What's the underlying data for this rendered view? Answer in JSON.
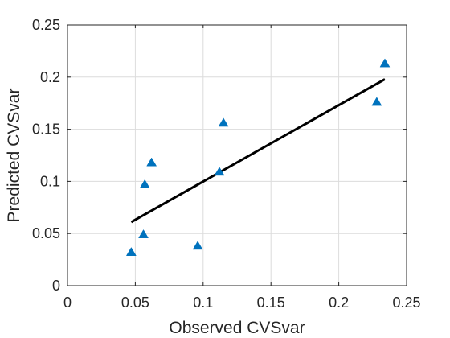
{
  "chart_data": {
    "type": "scatter",
    "title": "",
    "xlabel": "Observed CVSvar",
    "ylabel": "Predicted CVSvar",
    "xlim": [
      0,
      0.25
    ],
    "ylim": [
      0,
      0.25
    ],
    "xticks": [
      "0",
      "0.05",
      "0.1",
      "0.15",
      "0.2",
      "0.25"
    ],
    "yticks": [
      "0",
      "0.05",
      "0.1",
      "0.15",
      "0.2",
      "0.25"
    ],
    "grid": true,
    "legend": "none",
    "marker": "triangle",
    "colors": {
      "marker": "#0072BD",
      "fit_line": "#000000"
    },
    "series": [
      {
        "points": [
          {
            "x": 0.047,
            "y": 0.032
          },
          {
            "x": 0.056,
            "y": 0.049
          },
          {
            "x": 0.057,
            "y": 0.097
          },
          {
            "x": 0.062,
            "y": 0.118
          },
          {
            "x": 0.096,
            "y": 0.038
          },
          {
            "x": 0.112,
            "y": 0.109
          },
          {
            "x": 0.115,
            "y": 0.156
          },
          {
            "x": 0.228,
            "y": 0.176
          },
          {
            "x": 0.234,
            "y": 0.213
          }
        ]
      }
    ],
    "fit_line": {
      "x": [
        0.047,
        0.234
      ],
      "y": [
        0.061,
        0.198
      ]
    }
  }
}
